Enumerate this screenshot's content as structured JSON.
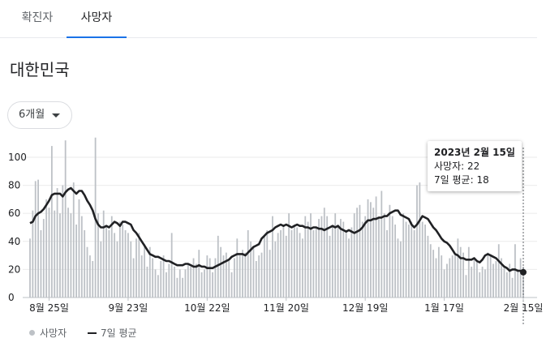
{
  "tabs": [
    {
      "label": "확진자",
      "active": false
    },
    {
      "label": "사망자",
      "active": true
    }
  ],
  "region": "대한민국",
  "range_selector": {
    "label": "6개월",
    "icon": "caret-down-icon"
  },
  "tooltip": {
    "date": "2023년 2월 15일",
    "daily_label": "사망자:",
    "daily_value": "22",
    "avg_label": "7일 평균:",
    "avg_value": "18"
  },
  "legend": [
    {
      "label": "사망자",
      "marker": "dot"
    },
    {
      "label": "7일 평균",
      "marker": "line"
    }
  ],
  "colors": {
    "bars": "#bdc1c6",
    "line": "#202124",
    "accent": "#1a73e8"
  },
  "chart_data": {
    "type": "bar",
    "ylim": [
      0,
      115
    ],
    "yticks": [
      0,
      20,
      40,
      60,
      80,
      100
    ],
    "xticks": [
      {
        "label": "8월 25일",
        "index": 7
      },
      {
        "label": "9월 23일",
        "index": 36
      },
      {
        "label": "10월 22일",
        "index": 65
      },
      {
        "label": "11월 20일",
        "index": 94
      },
      {
        "label": "12월 19일",
        "index": 123
      },
      {
        "label": "1월 17일",
        "index": 152
      },
      {
        "label": "2월 15일",
        "index": 181
      }
    ],
    "series": [
      {
        "name": "사망자",
        "type": "bar",
        "values": [
          42,
          62,
          83,
          84,
          48,
          56,
          70,
          64,
          108,
          62,
          78,
          60,
          80,
          112,
          64,
          60,
          82,
          52,
          70,
          58,
          48,
          36,
          30,
          26,
          114,
          60,
          40,
          62,
          50,
          48,
          58,
          46,
          40,
          54,
          52,
          48,
          46,
          40,
          28,
          42,
          46,
          30,
          38,
          22,
          36,
          28,
          20,
          16,
          26,
          30,
          18,
          24,
          46,
          22,
          14,
          20,
          14,
          20,
          24,
          22,
          28,
          24,
          34,
          18,
          20,
          30,
          28,
          18,
          28,
          44,
          36,
          30,
          32,
          26,
          18,
          28,
          42,
          30,
          34,
          32,
          48,
          40,
          36,
          26,
          30,
          32,
          44,
          48,
          34,
          58,
          40,
          46,
          48,
          52,
          44,
          60,
          48,
          52,
          50,
          46,
          42,
          58,
          54,
          60,
          48,
          50,
          56,
          58,
          64,
          58,
          44,
          50,
          60,
          52,
          56,
          54,
          48,
          42,
          50,
          60,
          64,
          66,
          54,
          58,
          70,
          68,
          64,
          72,
          56,
          76,
          60,
          48,
          66,
          58,
          52,
          42,
          40,
          60,
          54,
          52,
          54,
          48,
          80,
          82,
          54,
          52,
          44,
          38,
          34,
          28,
          36,
          30,
          20,
          24,
          28,
          30,
          30,
          42,
          36,
          32,
          16,
          36,
          22,
          28,
          26,
          18,
          22,
          20,
          32,
          30,
          24,
          26,
          38,
          28,
          22,
          18,
          24,
          14,
          38,
          20,
          28,
          22
        ]
      },
      {
        "name": "7일 평균",
        "type": "line",
        "values": [
          53,
          54,
          58,
          60,
          61,
          63,
          66,
          69,
          73,
          74,
          74,
          74,
          72,
          75,
          77,
          78,
          76,
          74,
          76,
          76,
          73,
          69,
          66,
          62,
          56,
          52,
          50,
          50,
          51,
          50,
          52,
          54,
          53,
          51,
          54,
          54,
          53,
          52,
          48,
          46,
          43,
          40,
          37,
          34,
          31,
          30,
          29,
          29,
          28,
          27,
          26,
          26,
          25,
          24,
          23,
          23,
          23,
          24,
          24,
          23,
          22,
          22,
          23,
          22,
          22,
          21,
          21,
          21,
          22,
          23,
          24,
          25,
          26,
          27,
          29,
          30,
          31,
          31,
          31,
          30,
          32,
          34,
          36,
          37,
          38,
          42,
          44,
          46,
          47,
          48,
          50,
          51,
          52,
          51,
          52,
          51,
          50,
          51,
          52,
          51,
          51,
          50,
          50,
          49,
          50,
          50,
          49,
          49,
          48,
          49,
          50,
          51,
          50,
          51,
          49,
          48,
          47,
          48,
          47,
          46,
          47,
          48,
          50,
          53,
          55,
          55,
          56,
          56,
          57,
          57,
          58,
          58,
          60,
          61,
          62,
          62,
          59,
          58,
          57,
          56,
          52,
          50,
          52,
          55,
          58,
          57,
          56,
          53,
          50,
          48,
          45,
          42,
          40,
          39,
          37,
          34,
          31,
          30,
          28,
          28,
          27,
          27,
          27,
          28,
          26,
          25,
          27,
          30,
          31,
          30,
          29,
          28,
          26,
          24,
          22,
          21,
          19,
          20,
          20,
          19,
          19,
          18
        ]
      }
    ]
  }
}
